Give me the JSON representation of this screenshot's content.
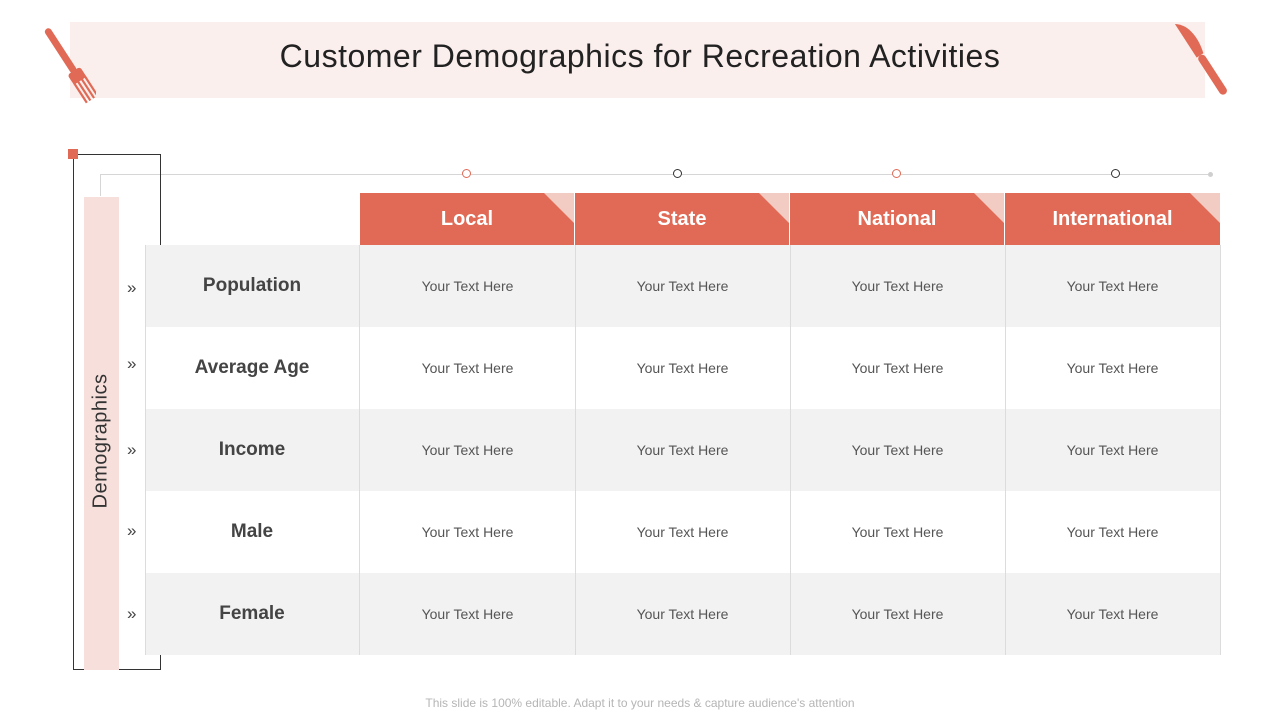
{
  "title": "Customer Demographics for Recreation Activities",
  "side_label": "Demographics",
  "chevron": "»",
  "columns": [
    "Local",
    "State",
    "National",
    "International"
  ],
  "rows": [
    {
      "label": "Population",
      "cells": [
        "Your Text Here",
        "Your Text Here",
        "Your Text Here",
        "Your Text Here"
      ]
    },
    {
      "label": "Average Age",
      "cells": [
        "Your Text Here",
        "Your Text Here",
        "Your Text Here",
        "Your Text Here"
      ]
    },
    {
      "label": "Income",
      "cells": [
        "Your Text Here",
        "Your Text Here",
        "Your Text Here",
        "Your Text Here"
      ]
    },
    {
      "label": "Male",
      "cells": [
        "Your Text Here",
        "Your Text Here",
        "Your Text Here",
        "Your Text Here"
      ]
    },
    {
      "label": "Female",
      "cells": [
        "Your Text Here",
        "Your Text Here",
        "Your Text Here",
        "Your Text Here"
      ]
    }
  ],
  "timeline_dot_colors": [
    "#e06a55",
    "#333333",
    "#e06a55",
    "#333333"
  ],
  "footer": "This slide is 100% editable. Adapt it to your needs & capture audience's attention",
  "colors": {
    "accent": "#e06a55",
    "banner": "#fbefed",
    "band": "#f7dfdc",
    "row_alt": "#f2f2f2"
  },
  "icons": [
    "fork-icon",
    "knife-icon"
  ]
}
